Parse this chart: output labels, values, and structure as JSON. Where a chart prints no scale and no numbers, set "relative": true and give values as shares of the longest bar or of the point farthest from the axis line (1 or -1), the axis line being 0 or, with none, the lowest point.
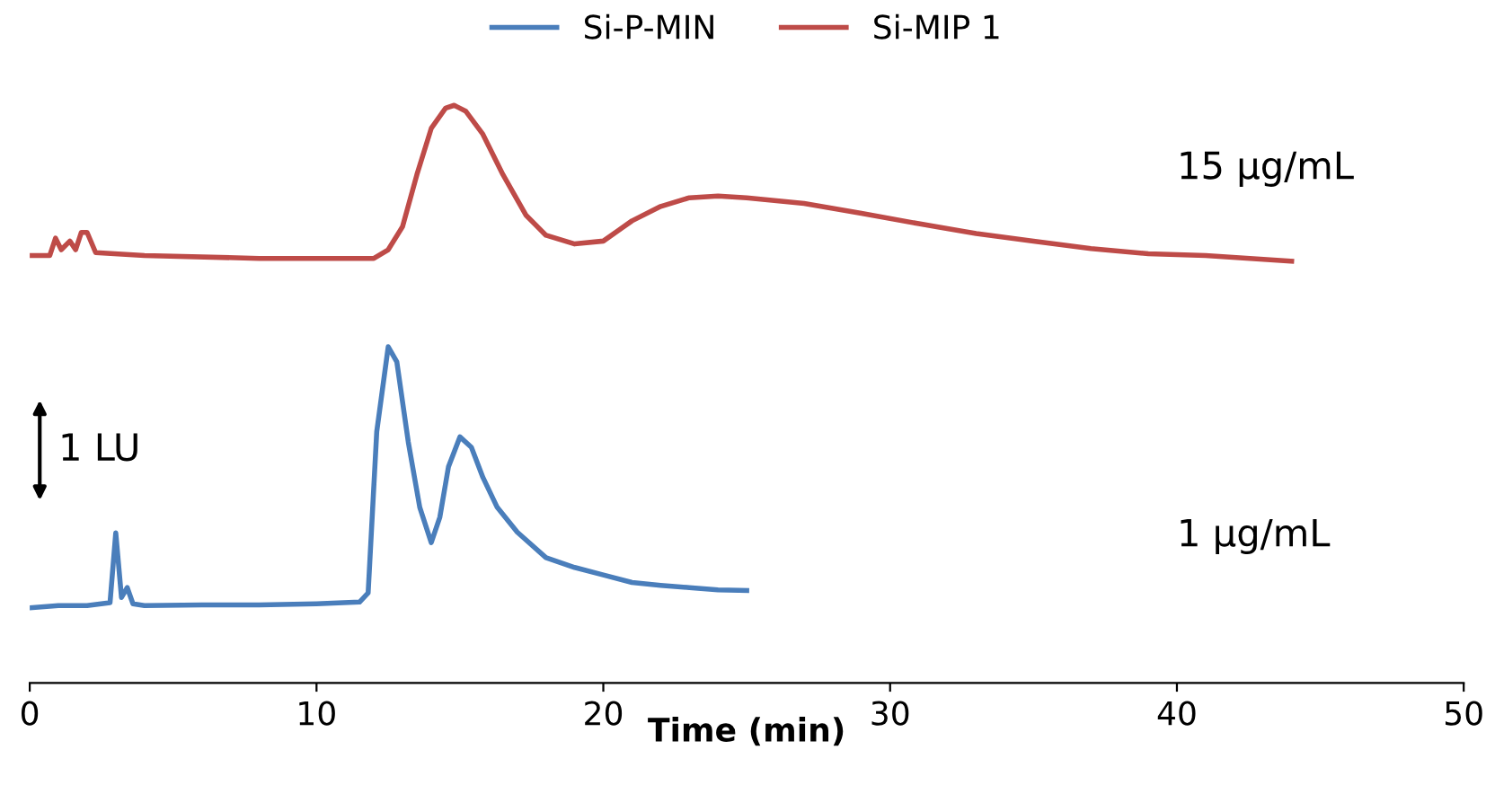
{
  "chart_data": {
    "type": "line",
    "relative": true,
    "xlabel": "Time (min)",
    "xlim": [
      0,
      50
    ],
    "xticks": [
      0,
      10,
      20,
      30,
      40,
      50
    ],
    "legend": "top",
    "grid": false,
    "marker": "none",
    "line_style": "solid",
    "series": [
      {
        "name": "Si-P-MIN",
        "color": "#4a7ebb",
        "x": [
          0,
          1,
          2,
          2.8,
          3,
          3.2,
          3.4,
          3.6,
          4,
          6,
          8,
          10,
          11.5,
          11.8,
          12.1,
          12.5,
          12.8,
          13.2,
          13.6,
          14,
          14.3,
          14.6,
          15,
          15.4,
          15.8,
          16.3,
          17,
          18,
          19,
          20,
          21,
          22,
          23,
          24,
          25
        ],
        "values": [
          0.13,
          0.134,
          0.134,
          0.139,
          0.26,
          0.148,
          0.165,
          0.137,
          0.134,
          0.135,
          0.135,
          0.137,
          0.14,
          0.156,
          0.435,
          0.582,
          0.556,
          0.417,
          0.304,
          0.243,
          0.287,
          0.374,
          0.426,
          0.408,
          0.356,
          0.304,
          0.261,
          0.217,
          0.2,
          0.187,
          0.174,
          0.169,
          0.165,
          0.161,
          0.16
        ]
      },
      {
        "name": "Si-MIP 1",
        "color": "#be4b48",
        "x": [
          0,
          0.7,
          0.9,
          1.1,
          1.4,
          1.6,
          1.8,
          2,
          2.3,
          4,
          8,
          12,
          12.5,
          13,
          13.5,
          14,
          14.5,
          14.8,
          15.2,
          15.8,
          16.5,
          17.3,
          18,
          19,
          20,
          21,
          22,
          23,
          24,
          25,
          27,
          29,
          31,
          33,
          35,
          37,
          39,
          41,
          44
        ],
        "values": [
          0.74,
          0.74,
          0.77,
          0.75,
          0.765,
          0.75,
          0.78,
          0.78,
          0.745,
          0.74,
          0.735,
          0.735,
          0.75,
          0.79,
          0.88,
          0.96,
          0.995,
          1.0,
          0.99,
          0.95,
          0.88,
          0.81,
          0.775,
          0.76,
          0.765,
          0.8,
          0.825,
          0.84,
          0.843,
          0.84,
          0.83,
          0.813,
          0.795,
          0.778,
          0.765,
          0.752,
          0.743,
          0.74,
          0.73
        ]
      }
    ],
    "annotations": [
      "15 µg/mL",
      "1 µg/mL",
      "1 LU"
    ]
  }
}
